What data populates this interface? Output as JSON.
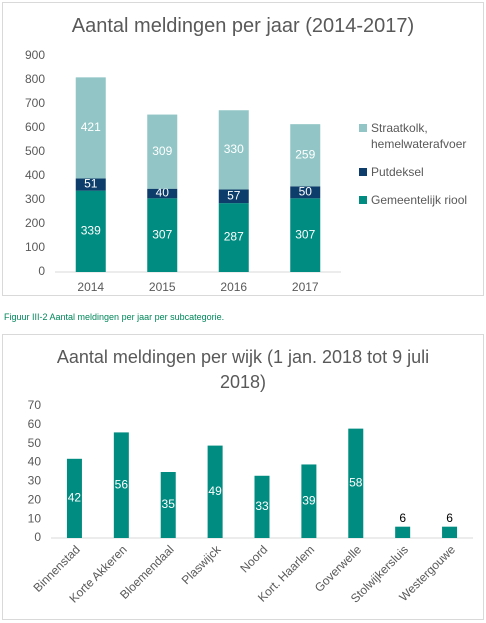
{
  "chart_data": [
    {
      "type": "bar",
      "stacked": true,
      "title": "Aantal meldingen per jaar (2014-2017)",
      "categories": [
        "2014",
        "2015",
        "2016",
        "2017"
      ],
      "series": [
        {
          "name": "Gemeentelijk riool",
          "color": "#008c80",
          "values": [
            339,
            307,
            287,
            307
          ]
        },
        {
          "name": "Putdeksel",
          "color": "#0c3d6b",
          "values": [
            51,
            40,
            57,
            50
          ]
        },
        {
          "name": "Straatkolk, hemelwaterafvoer",
          "color": "#92c6c6",
          "values": [
            421,
            309,
            330,
            259
          ]
        }
      ],
      "ylim": [
        0,
        900
      ],
      "yticks": [
        0,
        100,
        200,
        300,
        400,
        500,
        600,
        700,
        800,
        900
      ],
      "grid": false,
      "legend": "right"
    },
    {
      "type": "bar",
      "title": "Aantal meldingen per wijk (1 jan. 2018 tot 9 juli 2018)",
      "categories": [
        "Binnenstad",
        "Korte Akkeren",
        "Bloemendaal",
        "Plaswijck",
        "Noord",
        "Kort. Haarlem",
        "Goverwelle",
        "Stolwijkersluis",
        "Westergouwe"
      ],
      "values": [
        42,
        56,
        35,
        49,
        33,
        39,
        58,
        6,
        6
      ],
      "color": "#008c80",
      "ylim": [
        0,
        70
      ],
      "yticks": [
        0,
        10,
        20,
        30,
        40,
        50,
        60,
        70
      ],
      "grid": false
    }
  ],
  "caption": "Figuur III-2 Aantal meldingen per jaar per subcategorie."
}
